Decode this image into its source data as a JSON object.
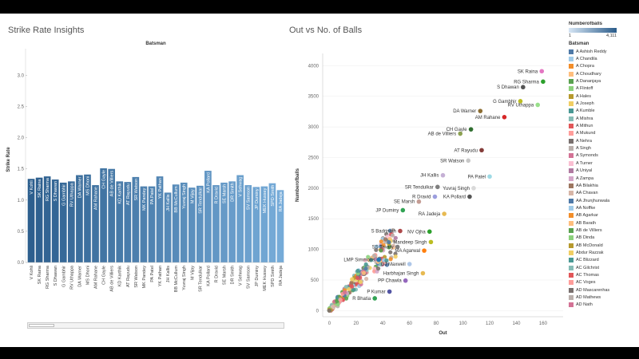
{
  "left_title": "Strike Rate Insights",
  "right_title": "Out  vs No. of Balls",
  "chart_data": [
    {
      "type": "bar",
      "header": "Batsman",
      "ylabel": "Strike Rate",
      "ylim": [
        0,
        3.3
      ],
      "yticks": [
        0.0,
        0.5,
        1.0,
        1.5,
        2.0,
        2.5,
        3.0
      ],
      "categories": [
        "V Kohli",
        "SK Raina",
        "RG Sharma",
        "S Dhawan",
        "G Gambhir",
        "RV Uthappa",
        "DA Warner",
        "MS Dhoni",
        "AM Rahane",
        "CH Gayle",
        "AB de Villiers",
        "KD Karthik",
        "AT Rayudu",
        "SR Watson",
        "MK Pandey",
        "PA Patel",
        "YK Pathan",
        "JH Kallis",
        "BB McCullum",
        "Yuvraj Singh",
        "M Vijay",
        "SR Tendulkar",
        "KA Pollard",
        "R Dravid",
        "SE Marsh",
        "DR Smith",
        "V Sehwag",
        "SV Samson",
        "JP Duminy",
        "MEK Hussey",
        "SPD Smith",
        "RA Jadeja"
      ],
      "values": [
        1.34,
        1.36,
        1.38,
        1.33,
        1.28,
        1.3,
        1.4,
        1.41,
        1.24,
        1.51,
        1.5,
        1.3,
        1.29,
        1.37,
        1.22,
        1.22,
        1.38,
        1.12,
        1.25,
        1.28,
        1.2,
        1.23,
        1.47,
        1.24,
        1.28,
        1.3,
        1.4,
        1.24,
        1.21,
        1.22,
        1.27,
        1.16
      ]
    },
    {
      "type": "scatter",
      "xlabel": "Out",
      "ylabel": "Numberofballs",
      "xlim": [
        -5,
        175
      ],
      "ylim": [
        -100,
        4200
      ],
      "xticks": [
        0,
        20,
        40,
        60,
        80,
        100,
        120,
        140,
        160
      ],
      "yticks": [
        0,
        500,
        1000,
        1500,
        2000,
        2500,
        3000,
        3500,
        4000
      ],
      "labeled_points": [
        {
          "label": "SK Raina",
          "x": 159,
          "y": 3910,
          "color": "#e377c2"
        },
        {
          "label": "RG Sharma",
          "x": 160,
          "y": 3740,
          "color": "#2ca02c"
        },
        {
          "label": "S Dhawan",
          "x": 145,
          "y": 3650,
          "color": "#555555"
        },
        {
          "label": "DA Warner",
          "x": 113,
          "y": 3260,
          "color": "#8c6d31"
        },
        {
          "label": "G Gambhir",
          "x": 143,
          "y": 3420,
          "color": "#bcbd22"
        },
        {
          "label": "AM Rahane",
          "x": 131,
          "y": 3160,
          "color": "#d62728"
        },
        {
          "label": "RV Uthappa",
          "x": 156,
          "y": 3360,
          "color": "#98df8a"
        },
        {
          "label": "CH Gayle",
          "x": 106,
          "y": 2960,
          "color": "#2f6e2f"
        },
        {
          "label": "AB de Villiers",
          "x": 98,
          "y": 2890,
          "color": "#8ca252"
        },
        {
          "label": "AT Rayudu",
          "x": 114,
          "y": 2620,
          "color": "#843c39"
        },
        {
          "label": "SR Watson",
          "x": 104,
          "y": 2450,
          "color": "#c7c7c7"
        },
        {
          "label": "PA Patel",
          "x": 120,
          "y": 2190,
          "color": "#9edae5"
        },
        {
          "label": "JH Kallis",
          "x": 85,
          "y": 2210,
          "color": "#c5b0d5"
        },
        {
          "label": "SR Tendulkar",
          "x": 81,
          "y": 2020,
          "color": "#7f7f7f"
        },
        {
          "label": "Yuvraj Singh",
          "x": 108,
          "y": 2000,
          "color": "#d9d9d9"
        },
        {
          "label": "R Dravid",
          "x": 79,
          "y": 1860,
          "color": "#9c9ede"
        },
        {
          "label": "KA Pollard",
          "x": 105,
          "y": 1860,
          "color": "#555555"
        },
        {
          "label": "SE Marsh",
          "x": 67,
          "y": 1780,
          "color": "#c49c94"
        },
        {
          "label": "JP Duminy",
          "x": 55,
          "y": 1640,
          "color": "#31a354"
        },
        {
          "label": "RA Jadeja",
          "x": 86,
          "y": 1580,
          "color": "#e7ba52"
        },
        {
          "label": "S Badrinath",
          "x": 53,
          "y": 1300,
          "color": "#ad494a"
        },
        {
          "label": "NV Ojha",
          "x": 75,
          "y": 1290,
          "color": "#2ca02c"
        },
        {
          "label": "Mandeep Singh",
          "x": 76,
          "y": 1120,
          "color": "#bcbd22"
        },
        {
          "label": "SS Tiwary",
          "x": 51,
          "y": 1040,
          "color": "#7f7f7f"
        },
        {
          "label": "MA Agarwal",
          "x": 71,
          "y": 980,
          "color": "#ff7f0e"
        },
        {
          "label": "LMP Simmons",
          "x": 37,
          "y": 830,
          "color": "#1f77b4"
        },
        {
          "label": "GJ Maxwell",
          "x": 60,
          "y": 760,
          "color": "#aec7e8"
        },
        {
          "label": "Harbhajan Singh",
          "x": 70,
          "y": 610,
          "color": "#e7ba52"
        },
        {
          "label": "PP Chawla",
          "x": 57,
          "y": 490,
          "color": "#9467bd"
        },
        {
          "label": "P Kumar",
          "x": 45,
          "y": 310,
          "color": "#5254a3"
        },
        {
          "label": "R Bhatia",
          "x": 34,
          "y": 200,
          "color": "#31a354"
        }
      ]
    }
  ],
  "legend": {
    "color_title": "Numberofballs",
    "color_min": "1",
    "color_max": "4,111",
    "title": "Batsman",
    "items": [
      {
        "name": "A Ashish Reddy",
        "color": "#4e79a7"
      },
      {
        "name": "A Chandila",
        "color": "#a0cbe8"
      },
      {
        "name": "A Chopra",
        "color": "#f28e2b"
      },
      {
        "name": "A Choudhary",
        "color": "#ffbe7d"
      },
      {
        "name": "A Dananjaya",
        "color": "#59a14f"
      },
      {
        "name": "A Flintoff",
        "color": "#8cd17d"
      },
      {
        "name": "A Hales",
        "color": "#b6992d"
      },
      {
        "name": "A Joseph",
        "color": "#f1ce63"
      },
      {
        "name": "A Kumble",
        "color": "#499894"
      },
      {
        "name": "A Mishra",
        "color": "#86bcb6"
      },
      {
        "name": "A Mithun",
        "color": "#e15759"
      },
      {
        "name": "A Mukund",
        "color": "#ff9d9a"
      },
      {
        "name": "A Nehra",
        "color": "#79706e"
      },
      {
        "name": "A Singh",
        "color": "#bab0ac"
      },
      {
        "name": "A Symonds",
        "color": "#d37295"
      },
      {
        "name": "A Turner",
        "color": "#fabfd2"
      },
      {
        "name": "A Uniyal",
        "color": "#b07aa1"
      },
      {
        "name": "A Zampa",
        "color": "#d4a6c8"
      },
      {
        "name": "AA Bilakhia",
        "color": "#9d7660"
      },
      {
        "name": "AA Chavan",
        "color": "#d7b5a6"
      },
      {
        "name": "AA Jhunjhunwala",
        "color": "#4e79a7"
      },
      {
        "name": "AA Noffke",
        "color": "#a0cbe8"
      },
      {
        "name": "AB Agarkar",
        "color": "#f28e2b"
      },
      {
        "name": "AB Barath",
        "color": "#ffbe7d"
      },
      {
        "name": "AB de Villiers",
        "color": "#59a14f"
      },
      {
        "name": "AB Dinda",
        "color": "#8cd17d"
      },
      {
        "name": "AB McDonald",
        "color": "#b6992d"
      },
      {
        "name": "Abdur Razzak",
        "color": "#f1ce63"
      },
      {
        "name": "AC Blizzard",
        "color": "#499894"
      },
      {
        "name": "AC Gilchrist",
        "color": "#86bcb6"
      },
      {
        "name": "AC Thomas",
        "color": "#e15759"
      },
      {
        "name": "AC Voges",
        "color": "#ff9d9a"
      },
      {
        "name": "AD Mascarenhas",
        "color": "#79706e"
      },
      {
        "name": "AD Mathews",
        "color": "#bab0ac"
      },
      {
        "name": "AD Nath",
        "color": "#d37295"
      }
    ]
  }
}
